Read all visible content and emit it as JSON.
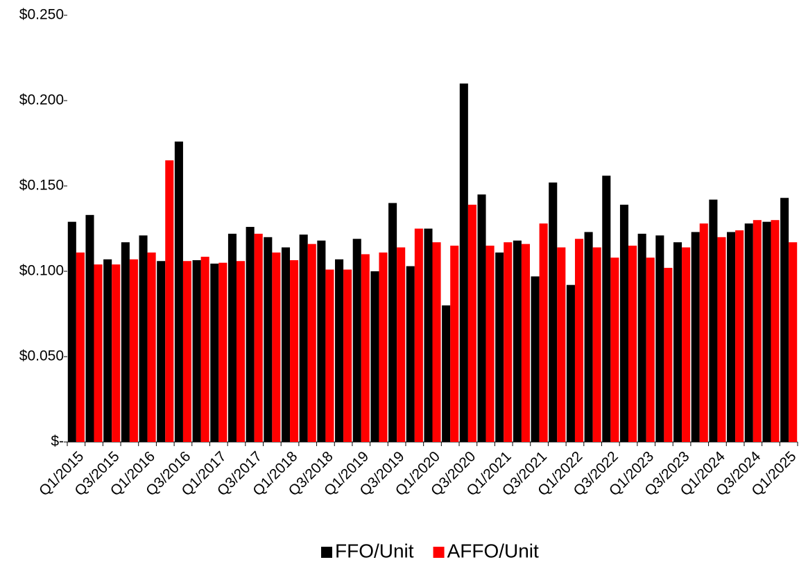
{
  "chart_data": {
    "type": "bar",
    "categories": [
      "Q1/2015",
      null,
      "Q3/2015",
      null,
      "Q1/2016",
      null,
      "Q3/2016",
      null,
      "Q1/2017",
      null,
      "Q3/2017",
      null,
      "Q1/2018",
      null,
      "Q3/2018",
      null,
      "Q1/2019",
      null,
      "Q3/2019",
      null,
      "Q1/2020",
      null,
      "Q3/2020",
      null,
      "Q1/2021",
      null,
      "Q3/2021",
      null,
      "Q1/2022",
      null,
      "Q3/2022",
      null,
      "Q1/2023",
      null,
      "Q3/2023",
      null,
      "Q1/2024",
      null,
      "Q3/2024",
      null,
      "Q1/2025"
    ],
    "series": [
      {
        "name": "FFO/Unit",
        "color": "#000000",
        "values": [
          0.129,
          0.133,
          0.107,
          0.117,
          0.121,
          0.106,
          0.176,
          0.1065,
          0.1045,
          0.122,
          0.126,
          0.12,
          0.114,
          0.1215,
          0.118,
          0.107,
          0.119,
          0.1,
          0.14,
          0.103,
          0.125,
          0.08,
          0.21,
          0.145,
          0.111,
          0.118,
          0.097,
          0.152,
          0.092,
          0.123,
          0.156,
          0.139,
          0.122,
          0.121,
          0.117,
          0.123,
          0.142,
          0.123,
          0.128,
          0.129,
          0.143
        ]
      },
      {
        "name": "AFFO/Unit",
        "color": "#ff0000",
        "values": [
          0.111,
          0.104,
          0.104,
          0.107,
          0.111,
          0.165,
          0.106,
          0.1085,
          0.105,
          0.106,
          0.122,
          0.111,
          0.1065,
          0.116,
          0.101,
          0.101,
          0.11,
          0.111,
          0.114,
          0.125,
          0.117,
          0.115,
          0.139,
          0.115,
          0.117,
          0.116,
          0.128,
          0.114,
          0.119,
          0.114,
          0.108,
          0.115,
          0.108,
          0.102,
          0.114,
          0.128,
          0.12,
          0.124,
          0.13,
          0.13,
          0.117
        ]
      }
    ],
    "ylim": [
      0,
      0.25
    ],
    "yticks": [
      {
        "value": 0,
        "label": "$-"
      },
      {
        "value": 0.05,
        "label": "$0.050"
      },
      {
        "value": 0.1,
        "label": "$0.100"
      },
      {
        "value": 0.15,
        "label": "$0.150"
      },
      {
        "value": 0.2,
        "label": "$0.200"
      },
      {
        "value": 0.25,
        "label": "$0.250"
      }
    ],
    "legend": "bottom"
  }
}
